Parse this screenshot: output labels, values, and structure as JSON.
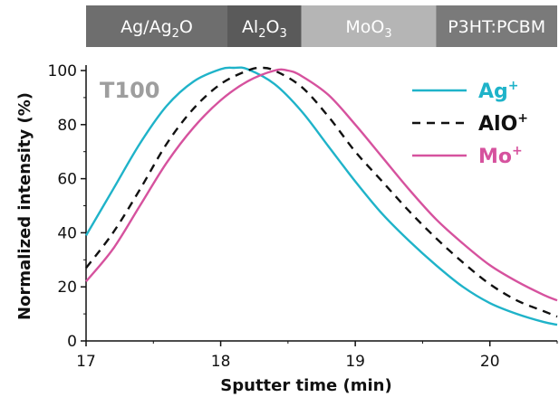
{
  "chart_data": {
    "type": "line",
    "xlabel": "Sputter time (min)",
    "ylabel": "Normalized intensity (%)",
    "xlim": [
      17,
      20.5
    ],
    "ylim": [
      0,
      100
    ],
    "x_ticks": [
      17,
      18,
      19,
      20
    ],
    "y_ticks": [
      0,
      20,
      40,
      60,
      80,
      100
    ],
    "annotation": "T100",
    "grid": false,
    "legend_position": "top-right",
    "layers": [
      {
        "label": "Ag/Ag",
        "sub": "2",
        "suffix": "O",
        "start": 17.0,
        "end": 18.05,
        "color": "#6e6e6e"
      },
      {
        "label": "Al",
        "sub": "2",
        "suffix": "O",
        "sub2": "3",
        "start": 18.05,
        "end": 18.6,
        "color": "#5a5a5a"
      },
      {
        "label": "MoO",
        "sub": "3",
        "suffix": "",
        "start": 18.6,
        "end": 19.6,
        "color": "#b5b5b5"
      },
      {
        "label": "P3HT:PCBM",
        "sub": "",
        "suffix": "",
        "start": 19.6,
        "end": 20.5,
        "color": "#7a7a7a"
      }
    ],
    "series": [
      {
        "name": "Ag",
        "sup": "+",
        "color": "#1fb3c9",
        "dash": "",
        "x": [
          17.0,
          17.2,
          17.4,
          17.6,
          17.8,
          18.0,
          18.1,
          18.2,
          18.4,
          18.6,
          18.8,
          19.0,
          19.2,
          19.4,
          19.6,
          19.8,
          20.0,
          20.2,
          20.4,
          20.5
        ],
        "y": [
          39,
          56,
          73,
          87,
          96,
          100.5,
          101,
          100.5,
          95,
          85,
          72,
          59,
          47,
          37,
          28,
          20,
          14,
          10,
          7,
          6
        ]
      },
      {
        "name": "AlO",
        "sup": "+",
        "color": "#111111",
        "dash": "9,7",
        "x": [
          17.0,
          17.2,
          17.4,
          17.6,
          17.8,
          18.0,
          18.2,
          18.3,
          18.4,
          18.6,
          18.8,
          19.0,
          19.2,
          19.4,
          19.6,
          19.8,
          20.0,
          20.2,
          20.4,
          20.5
        ],
        "y": [
          27,
          40,
          56,
          73,
          86,
          95,
          100,
          101,
          100,
          94,
          83,
          70,
          59,
          48,
          38,
          29,
          21,
          15,
          11,
          9
        ]
      },
      {
        "name": "Mo",
        "sup": "+",
        "color": "#d6529e",
        "dash": "",
        "x": [
          17.0,
          17.2,
          17.4,
          17.6,
          17.8,
          18.0,
          18.2,
          18.4,
          18.5,
          18.6,
          18.8,
          19.0,
          19.2,
          19.4,
          19.6,
          19.8,
          20.0,
          20.2,
          20.4,
          20.5
        ],
        "y": [
          22,
          34,
          50,
          66,
          79,
          89,
          96,
          100,
          100,
          98,
          91,
          80,
          68,
          56,
          45,
          36,
          28,
          22,
          17,
          15
        ]
      }
    ]
  }
}
